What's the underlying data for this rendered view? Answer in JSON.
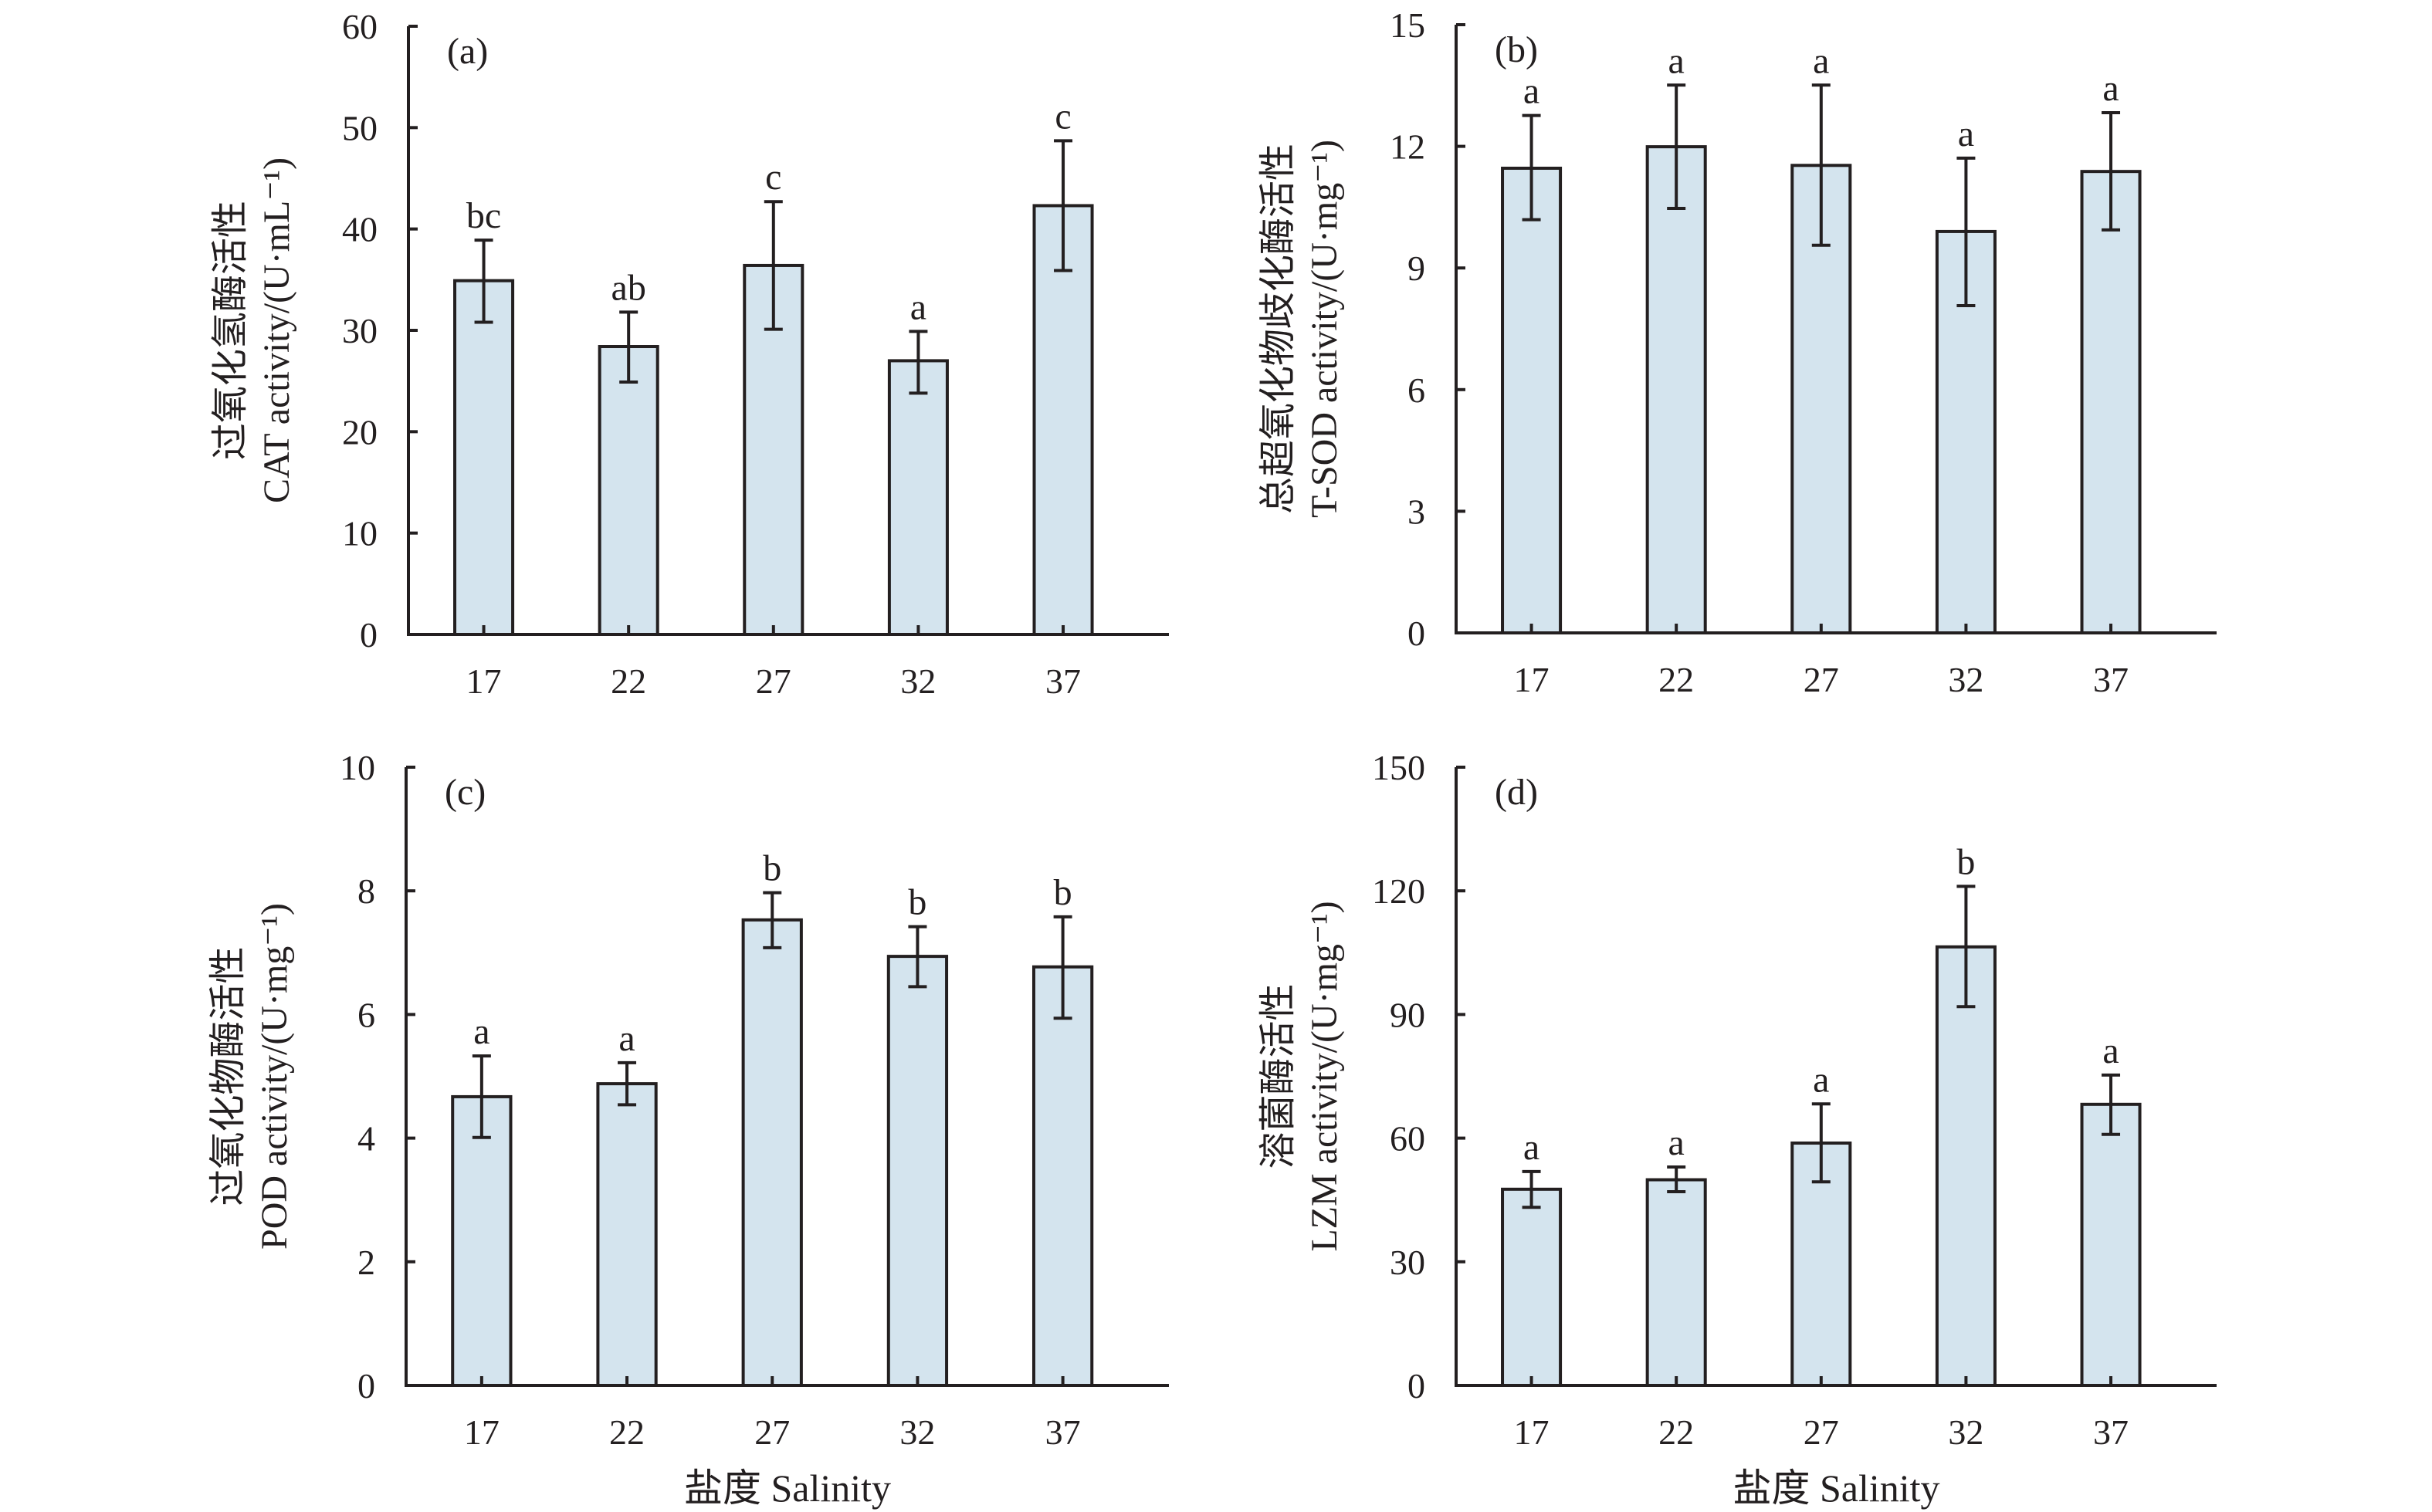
{
  "figure": {
    "colors": {
      "bar_fill": "#d4e4ee",
      "bar_stroke": "#231f20",
      "text": "#231f20"
    }
  },
  "chart_data": [
    {
      "type": "bar",
      "panel": "(a)",
      "categories": [
        "17",
        "22",
        "27",
        "32",
        "37"
      ],
      "values": [
        34.9,
        28.4,
        36.4,
        27.0,
        42.3
      ],
      "error_upper": [
        38.9,
        31.8,
        42.7,
        29.9,
        48.7
      ],
      "error_lower": [
        30.8,
        24.9,
        30.1,
        23.8,
        35.9
      ],
      "significance": [
        "bc",
        "ab",
        "c",
        "a",
        "c"
      ],
      "ylabel_cn": "过氧化氢酶活性",
      "ylabel": "CAT activity/(U·mL⁻¹)",
      "xlabel": "",
      "ylim": [
        0,
        60
      ],
      "yticks": [
        0,
        10,
        20,
        30,
        40,
        50,
        60
      ],
      "grid": false
    },
    {
      "type": "bar",
      "panel": "(b)",
      "categories": [
        "17",
        "22",
        "27",
        "32",
        "37"
      ],
      "values": [
        11.46,
        11.99,
        11.53,
        9.9,
        11.38
      ],
      "error_upper": [
        12.76,
        13.51,
        13.51,
        11.71,
        12.83
      ],
      "error_lower": [
        10.19,
        10.47,
        9.56,
        8.07,
        9.94
      ],
      "significance": [
        "a",
        "a",
        "a",
        "a",
        "a"
      ],
      "ylabel_cn": "总超氧化物歧化酶活性",
      "ylabel": "T-SOD activity/(U·mg⁻¹)",
      "xlabel": "",
      "ylim": [
        0,
        15
      ],
      "yticks": [
        0,
        3,
        6,
        9,
        12,
        15
      ],
      "grid": false
    },
    {
      "type": "bar",
      "panel": "(c)",
      "categories": [
        "17",
        "22",
        "27",
        "32",
        "37"
      ],
      "values": [
        4.67,
        4.88,
        7.53,
        6.94,
        6.77
      ],
      "error_upper": [
        5.33,
        5.22,
        7.97,
        7.42,
        7.58
      ],
      "error_lower": [
        4.01,
        4.54,
        7.08,
        6.45,
        5.94
      ],
      "significance": [
        "a",
        "a",
        "b",
        "b",
        "b"
      ],
      "ylabel_cn": "过氧化物酶活性",
      "ylabel": "POD activity/(U·mg⁻¹)",
      "xlabel": "盐度 Salinity",
      "ylim": [
        0,
        10
      ],
      "yticks": [
        0,
        2,
        4,
        6,
        8,
        10
      ],
      "grid": false
    },
    {
      "type": "bar",
      "panel": "(d)",
      "categories": [
        "17",
        "22",
        "27",
        "32",
        "37"
      ],
      "values": [
        47.6,
        49.9,
        58.8,
        106.4,
        68.2
      ],
      "error_upper": [
        51.9,
        53.0,
        68.3,
        121.1,
        75.3
      ],
      "error_lower": [
        43.2,
        47.0,
        49.4,
        91.9,
        60.9
      ],
      "significance": [
        "a",
        "a",
        "a",
        "b",
        "a"
      ],
      "ylabel_cn": "溶菌酶活性",
      "ylabel": "LZM activity/(U·mg⁻¹)",
      "xlabel": "盐度 Salinity",
      "ylim": [
        0,
        150
      ],
      "yticks": [
        0,
        30,
        60,
        90,
        120,
        150
      ],
      "grid": false
    }
  ]
}
